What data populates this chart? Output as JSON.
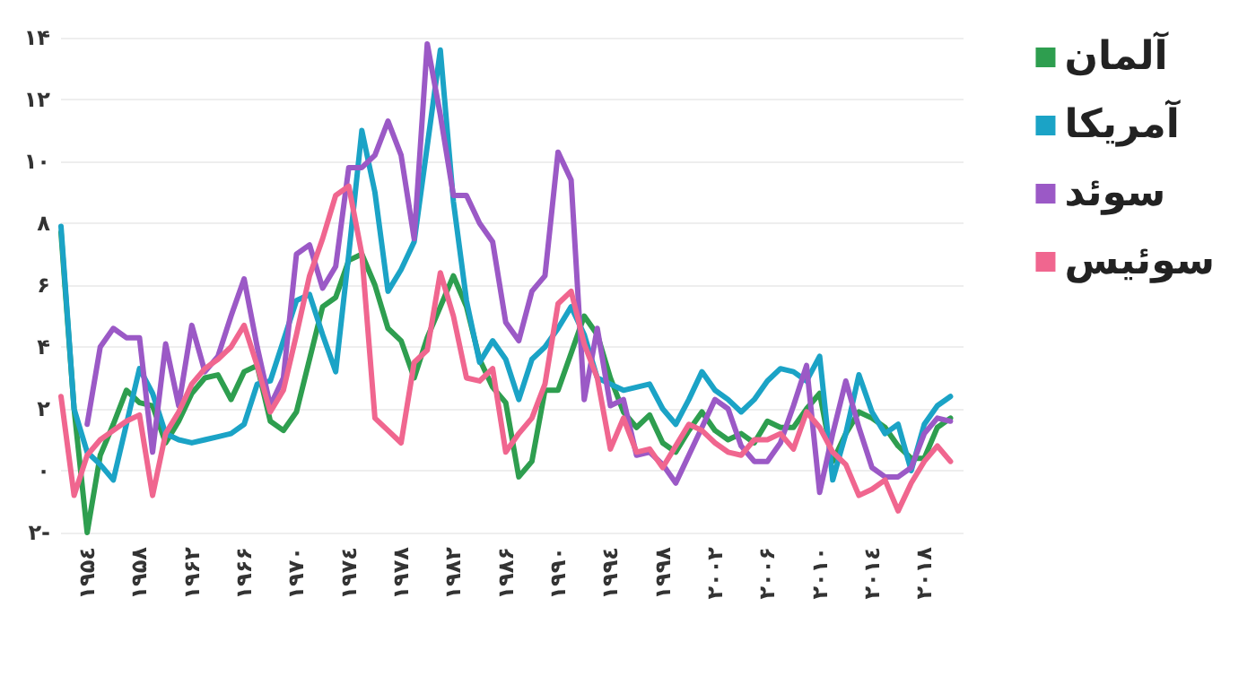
{
  "chart_data": {
    "type": "line",
    "x": [
      1952,
      1953,
      1954,
      1955,
      1956,
      1957,
      1958,
      1959,
      1960,
      1961,
      1962,
      1963,
      1964,
      1965,
      1966,
      1967,
      1968,
      1969,
      1970,
      1971,
      1972,
      1973,
      1974,
      1975,
      1976,
      1977,
      1978,
      1979,
      1980,
      1981,
      1982,
      1983,
      1984,
      1985,
      1986,
      1987,
      1988,
      1989,
      1990,
      1991,
      1992,
      1993,
      1994,
      1995,
      1996,
      1997,
      1998,
      1999,
      2000,
      2001,
      2002,
      2003,
      2004,
      2005,
      2006,
      2007,
      2008,
      2009,
      2010,
      2011,
      2012,
      2013,
      2014,
      2015,
      2016,
      2017,
      2018,
      2019,
      2020
    ],
    "series": [
      {
        "name": "آلمان",
        "color": "#2e9e4f",
        "values": [
          7.7,
          2.0,
          -2.0,
          0.5,
          1.5,
          2.6,
          2.2,
          2.1,
          0.9,
          1.6,
          2.5,
          3.0,
          3.1,
          2.3,
          3.2,
          3.4,
          1.6,
          1.3,
          1.9,
          3.6,
          5.3,
          5.6,
          6.8,
          7.0,
          6.0,
          4.6,
          4.2,
          3.0,
          4.3,
          5.3,
          6.3,
          5.3,
          3.6,
          2.7,
          2.2,
          -0.2,
          0.3,
          2.6,
          2.6,
          3.8,
          5.0,
          4.4,
          3.0,
          1.9,
          1.4,
          1.8,
          0.9,
          0.6,
          1.3,
          1.9,
          1.3,
          1.0,
          1.2,
          0.9,
          1.6,
          1.4,
          1.4,
          2.0,
          2.5,
          0.3,
          1.2,
          1.9,
          1.7,
          1.4,
          0.8,
          0.4,
          0.4,
          1.4,
          1.7
        ]
      },
      {
        "name": "آمریکا",
        "color": "#1ba3c6",
        "values": [
          7.9,
          2.0,
          0.6,
          0.2,
          -0.3,
          1.5,
          3.3,
          2.5,
          1.2,
          1.0,
          0.9,
          1.0,
          1.1,
          1.2,
          1.5,
          2.8,
          2.9,
          4.2,
          5.5,
          5.7,
          4.4,
          3.2,
          7.0,
          11.0,
          9.0,
          5.8,
          6.5,
          7.4,
          10.5,
          13.6,
          8.7,
          5.5,
          3.5,
          4.2,
          3.6,
          2.3,
          3.6,
          4.0,
          4.6,
          5.3,
          4.4,
          3.0,
          2.8,
          2.6,
          2.7,
          2.8,
          2.0,
          1.5,
          2.3,
          3.2,
          2.6,
          2.3,
          1.9,
          2.3,
          2.9,
          3.3,
          3.2,
          2.9,
          3.7,
          -0.3,
          1.2,
          3.1,
          1.9,
          1.2,
          1.5,
          0.0,
          1.5,
          2.1,
          2.4
        ]
      },
      {
        "name": "سوئد",
        "color": "#9b59c6",
        "values": [
          null,
          null,
          1.5,
          4.0,
          4.6,
          4.3,
          4.3,
          0.6,
          4.1,
          2.1,
          4.7,
          3.2,
          3.7,
          5.0,
          6.2,
          4.0,
          2.1,
          3.0,
          7.0,
          7.3,
          5.9,
          6.6,
          9.8,
          9.8,
          10.2,
          11.3,
          10.2,
          7.5,
          13.8,
          11.5,
          8.9,
          8.9,
          8.0,
          7.4,
          4.8,
          4.2,
          5.8,
          6.3,
          10.3,
          9.4,
          2.3,
          4.6,
          2.1,
          2.3,
          0.5,
          0.6,
          0.2,
          -0.4,
          0.5,
          1.4,
          2.3,
          2.0,
          0.8,
          0.3,
          0.3,
          0.9,
          2.1,
          3.4,
          -0.7,
          1.2,
          2.9,
          1.4,
          0.1,
          -0.2,
          -0.2,
          0.1,
          1.2,
          1.7,
          1.6
        ]
      },
      {
        "name": "سوئیس",
        "color": "#f0668f",
        "values": [
          2.4,
          -0.8,
          0.5,
          1.0,
          1.3,
          1.6,
          1.8,
          -0.8,
          1.2,
          1.9,
          2.8,
          3.3,
          3.6,
          4.0,
          4.7,
          3.4,
          1.9,
          2.6,
          4.4,
          6.3,
          7.5,
          8.9,
          9.2,
          7.0,
          1.7,
          1.3,
          0.9,
          3.5,
          3.9,
          6.4,
          5.0,
          3.0,
          2.9,
          3.3,
          0.6,
          1.2,
          1.7,
          2.8,
          5.4,
          5.8,
          4.1,
          3.0,
          0.7,
          1.7,
          0.6,
          0.7,
          0.1,
          0.8,
          1.5,
          1.3,
          0.9,
          0.6,
          0.5,
          1.0,
          1.0,
          1.2,
          0.7,
          1.9,
          1.4,
          0.6,
          0.2,
          -0.8,
          -0.6,
          -0.3,
          -1.3,
          -0.4,
          0.3,
          0.8,
          0.3
        ]
      }
    ],
    "xlim": [
      1952,
      2021
    ],
    "xticks": [
      {
        "value": 1954,
        "label": "۱۹۵٤"
      },
      {
        "value": 1958,
        "label": "۱۹۵۸"
      },
      {
        "value": 1962,
        "label": "۱۹۶۲"
      },
      {
        "value": 1966,
        "label": "۱۹۶۶"
      },
      {
        "value": 1970,
        "label": "۱۹۷۰"
      },
      {
        "value": 1974,
        "label": "۱۹۷٤"
      },
      {
        "value": 1978,
        "label": "۱۹۷۸"
      },
      {
        "value": 1982,
        "label": "۱۹۸۲"
      },
      {
        "value": 1986,
        "label": "۱۹۸۶"
      },
      {
        "value": 1990,
        "label": "۱۹۹۰"
      },
      {
        "value": 1994,
        "label": "۱۹۹٤"
      },
      {
        "value": 1998,
        "label": "۱۹۹۸"
      },
      {
        "value": 2002,
        "label": "۲۰۰۲"
      },
      {
        "value": 2006,
        "label": "۲۰۰۶"
      },
      {
        "value": 2010,
        "label": "۲۰۱۰"
      },
      {
        "value": 2014,
        "label": "۲۰۱٤"
      },
      {
        "value": 2018,
        "label": "۲۰۱۸"
      }
    ],
    "ylim": [
      -2,
      14
    ],
    "yticks": [
      {
        "value": -2,
        "label": "۲-"
      },
      {
        "value": 0,
        "label": "۰"
      },
      {
        "value": 2,
        "label": "۲"
      },
      {
        "value": 4,
        "label": "۴"
      },
      {
        "value": 6,
        "label": "۶"
      },
      {
        "value": 8,
        "label": "۸"
      },
      {
        "value": 10,
        "label": "۱۰"
      },
      {
        "value": 12,
        "label": "۱۲"
      },
      {
        "value": 14,
        "label": "۱۴"
      }
    ],
    "grid": "y",
    "legend": "top right",
    "marker": "none",
    "line_style": "solid"
  }
}
